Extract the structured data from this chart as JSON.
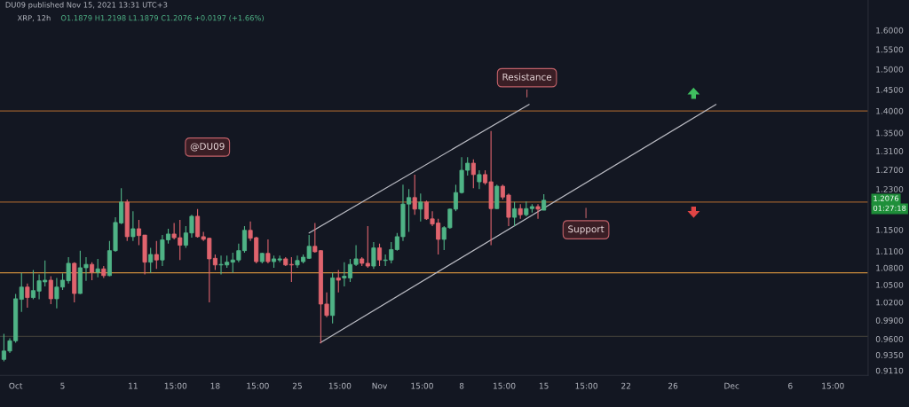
{
  "chart_data": {
    "type": "candlestick",
    "title": "XRP, 12h",
    "subtitle": "O1.1879 H1.2198 L1.1879 C1.2076 +0.0197 (+1.66%)",
    "annotations": [
      "DU09 published Nov 15, 2021 13:31 UTC+3",
      "@DU09",
      "Resistance",
      "Support",
      "1.2076",
      "01:27:18"
    ],
    "x": [
      "2021-09-30",
      "2021-09-30T12:00",
      "2021-10-01",
      "2021-10-01T12:00",
      "2021-10-02",
      "2021-10-02T12:00",
      "2021-10-03",
      "2021-10-03T12:00",
      "2021-10-04",
      "2021-10-04T12:00",
      "2021-10-05",
      "2021-10-05T12:00",
      "2021-10-06",
      "2021-10-06T12:00",
      "2021-10-07",
      "2021-10-07T12:00",
      "2021-10-08",
      "2021-10-08T12:00",
      "2021-10-09",
      "2021-10-09T12:00",
      "2021-10-10",
      "2021-10-10T12:00",
      "2021-10-11",
      "2021-10-11T12:00",
      "2021-10-12",
      "2021-10-12T12:00",
      "2021-10-13",
      "2021-10-13T12:00",
      "2021-10-14",
      "2021-10-14T12:00",
      "2021-10-15",
      "2021-10-15T12:00",
      "2021-10-16",
      "2021-10-16T12:00",
      "2021-10-17",
      "2021-10-17T12:00",
      "2021-10-18",
      "2021-10-18T12:00",
      "2021-10-19",
      "2021-10-19T12:00",
      "2021-10-20",
      "2021-10-20T12:00",
      "2021-10-21",
      "2021-10-21T12:00",
      "2021-10-22",
      "2021-10-22T12:00",
      "2021-10-23",
      "2021-10-23T12:00",
      "2021-10-24",
      "2021-10-24T12:00",
      "2021-10-25",
      "2021-10-25T12:00",
      "2021-10-26",
      "2021-10-26T12:00",
      "2021-10-27",
      "2021-10-27T12:00",
      "2021-10-28",
      "2021-10-28T12:00",
      "2021-10-29",
      "2021-10-29T12:00",
      "2021-10-30",
      "2021-10-30T12:00",
      "2021-10-31",
      "2021-10-31T12:00",
      "2021-11-01",
      "2021-11-01T12:00",
      "2021-11-02",
      "2021-11-02T12:00",
      "2021-11-03",
      "2021-11-03T12:00",
      "2021-11-04",
      "2021-11-04T12:00",
      "2021-11-05",
      "2021-11-05T12:00",
      "2021-11-06",
      "2021-11-06T12:00",
      "2021-11-07",
      "2021-11-07T12:00",
      "2021-11-08",
      "2021-11-08T12:00",
      "2021-11-09",
      "2021-11-09T12:00",
      "2021-11-10",
      "2021-11-10T12:00",
      "2021-11-11",
      "2021-11-11T12:00",
      "2021-11-12",
      "2021-11-12T12:00",
      "2021-11-13",
      "2021-11-13T12:00",
      "2021-11-14",
      "2021-11-14T12:00",
      "2021-11-15"
    ],
    "ohlc": [
      [
        0.928,
        0.968,
        0.925,
        0.941
      ],
      [
        0.941,
        0.961,
        0.938,
        0.957
      ],
      [
        0.957,
        1.034,
        0.954,
        1.026
      ],
      [
        1.025,
        1.071,
        1.004,
        1.046
      ],
      [
        1.046,
        1.052,
        1.011,
        1.028
      ],
      [
        1.028,
        1.076,
        1.025,
        1.04
      ],
      [
        1.039,
        1.068,
        1.025,
        1.057
      ],
      [
        1.055,
        1.093,
        1.047,
        1.058
      ],
      [
        1.058,
        1.065,
        1.017,
        1.026
      ],
      [
        1.026,
        1.062,
        1.01,
        1.046
      ],
      [
        1.046,
        1.07,
        1.041,
        1.058
      ],
      [
        1.057,
        1.099,
        1.052,
        1.088
      ],
      [
        1.088,
        1.09,
        1.02,
        1.035
      ],
      [
        1.035,
        1.111,
        1.034,
        1.08
      ],
      [
        1.08,
        1.099,
        1.057,
        1.086
      ],
      [
        1.086,
        1.09,
        1.058,
        1.072
      ],
      [
        1.072,
        1.096,
        1.063,
        1.078
      ],
      [
        1.078,
        1.083,
        1.062,
        1.066
      ],
      [
        1.066,
        1.129,
        1.065,
        1.111
      ],
      [
        1.111,
        1.174,
        1.109,
        1.164
      ],
      [
        1.163,
        1.232,
        1.161,
        1.204
      ],
      [
        1.204,
        1.209,
        1.129,
        1.137
      ],
      [
        1.137,
        1.186,
        1.129,
        1.152
      ],
      [
        1.152,
        1.169,
        1.121,
        1.139
      ],
      [
        1.14,
        1.14,
        1.068,
        1.09
      ],
      [
        1.09,
        1.116,
        1.071,
        1.104
      ],
      [
        1.104,
        1.129,
        1.078,
        1.094
      ],
      [
        1.094,
        1.14,
        1.083,
        1.131
      ],
      [
        1.131,
        1.152,
        1.124,
        1.142
      ],
      [
        1.142,
        1.163,
        1.132,
        1.135
      ],
      [
        1.135,
        1.169,
        1.094,
        1.121
      ],
      [
        1.121,
        1.157,
        1.116,
        1.144
      ],
      [
        1.144,
        1.179,
        1.135,
        1.176
      ],
      [
        1.176,
        1.19,
        1.135,
        1.137
      ],
      [
        1.137,
        1.146,
        1.129,
        1.132
      ],
      [
        1.134,
        1.135,
        1.02,
        1.096
      ],
      [
        1.097,
        1.104,
        1.076,
        1.085
      ],
      [
        1.085,
        1.102,
        1.068,
        1.086
      ],
      [
        1.085,
        1.102,
        1.08,
        1.09
      ],
      [
        1.09,
        1.107,
        1.071,
        1.094
      ],
      [
        1.094,
        1.124,
        1.09,
        1.111
      ],
      [
        1.111,
        1.157,
        1.107,
        1.149
      ],
      [
        1.149,
        1.166,
        1.129,
        1.134
      ],
      [
        1.135,
        1.137,
        1.088,
        1.091
      ],
      [
        1.091,
        1.107,
        1.088,
        1.106
      ],
      [
        1.106,
        1.132,
        1.088,
        1.091
      ],
      [
        1.091,
        1.102,
        1.08,
        1.096
      ],
      [
        1.094,
        1.102,
        1.09,
        1.096
      ],
      [
        1.096,
        1.099,
        1.083,
        1.085
      ],
      [
        1.086,
        1.099,
        1.055,
        1.085
      ],
      [
        1.085,
        1.102,
        1.08,
        1.093
      ],
      [
        1.091,
        1.104,
        1.088,
        1.099
      ],
      [
        1.097,
        1.14,
        1.096,
        1.119
      ],
      [
        1.119,
        1.163,
        1.107,
        1.109
      ],
      [
        1.111,
        1.112,
        0.953,
        1.017
      ],
      [
        1.017,
        1.037,
        0.995,
        0.998
      ],
      [
        0.998,
        1.071,
        0.985,
        1.062
      ],
      [
        1.062,
        1.076,
        1.037,
        1.058
      ],
      [
        1.062,
        1.09,
        1.047,
        1.065
      ],
      [
        1.062,
        1.096,
        1.055,
        1.086
      ],
      [
        1.086,
        1.121,
        1.083,
        1.096
      ],
      [
        1.096,
        1.099,
        1.083,
        1.088
      ],
      [
        1.088,
        1.157,
        1.08,
        1.083
      ],
      [
        1.083,
        1.127,
        1.078,
        1.116
      ],
      [
        1.116,
        1.124,
        1.083,
        1.094
      ],
      [
        1.093,
        1.104,
        1.083,
        1.094
      ],
      [
        1.094,
        1.127,
        1.088,
        1.113
      ],
      [
        1.113,
        1.144,
        1.111,
        1.137
      ],
      [
        1.137,
        1.239,
        1.129,
        1.2
      ],
      [
        1.2,
        1.23,
        1.146,
        1.213
      ],
      [
        1.213,
        1.26,
        1.179,
        1.19
      ],
      [
        1.19,
        1.221,
        1.166,
        1.204
      ],
      [
        1.204,
        1.207,
        1.169,
        1.171
      ],
      [
        1.171,
        1.186,
        1.157,
        1.161
      ],
      [
        1.163,
        1.171,
        1.104,
        1.132
      ],
      [
        1.132,
        1.157,
        1.112,
        1.154
      ],
      [
        1.154,
        1.191,
        1.152,
        1.19
      ],
      [
        1.19,
        1.239,
        1.186,
        1.223
      ],
      [
        1.223,
        1.297,
        1.221,
        1.269
      ],
      [
        1.269,
        1.297,
        1.258,
        1.284
      ],
      [
        1.284,
        1.292,
        1.232,
        1.26
      ],
      [
        1.245,
        1.269,
        1.23,
        1.26
      ],
      [
        1.26,
        1.269,
        1.239,
        1.243
      ],
      [
        1.245,
        1.354,
        1.121,
        1.191
      ],
      [
        1.191,
        1.239,
        1.19,
        1.236
      ],
      [
        1.236,
        1.239,
        1.209,
        1.214
      ],
      [
        1.218,
        1.221,
        1.157,
        1.174
      ],
      [
        1.174,
        1.204,
        1.157,
        1.191
      ],
      [
        1.191,
        1.2,
        1.171,
        1.179
      ],
      [
        1.179,
        1.205,
        1.176,
        1.191
      ],
      [
        1.191,
        1.2,
        1.183,
        1.195
      ],
      [
        1.195,
        1.2,
        1.171,
        1.19
      ],
      [
        1.1879,
        1.2198,
        1.1879,
        1.2076
      ]
    ],
    "colors": [
      "#4fb386",
      "#4fb386",
      "#4fb386",
      "#4fb386",
      "#e0646e",
      "#4fb386",
      "#4fb386",
      "#4fb386",
      "#e0646e",
      "#4fb386",
      "#4fb386",
      "#4fb386",
      "#e0646e",
      "#4fb386",
      "#4fb386",
      "#e0646e",
      "#4fb386",
      "#e0646e",
      "#4fb386",
      "#4fb386",
      "#4fb386",
      "#e0646e",
      "#4fb386",
      "#e0646e",
      "#e0646e",
      "#4fb386",
      "#e0646e",
      "#4fb386",
      "#4fb386",
      "#e0646e",
      "#e0646e",
      "#4fb386",
      "#4fb386",
      "#e0646e",
      "#e0646e",
      "#e0646e",
      "#e0646e",
      "#4fb386",
      "#4fb386",
      "#4fb386",
      "#4fb386",
      "#4fb386",
      "#e0646e",
      "#e0646e",
      "#4fb386",
      "#e0646e",
      "#4fb386",
      "#4fb386",
      "#e0646e",
      "#e0646e",
      "#4fb386",
      "#4fb386",
      "#4fb386",
      "#e0646e",
      "#e0646e",
      "#e0646e",
      "#4fb386",
      "#e0646e",
      "#4fb386",
      "#4fb386",
      "#4fb386",
      "#e0646e",
      "#e0646e",
      "#4fb386",
      "#e0646e",
      "#4fb386",
      "#4fb386",
      "#4fb386",
      "#4fb386",
      "#4fb386",
      "#e0646e",
      "#4fb386",
      "#e0646e",
      "#e0646e",
      "#e0646e",
      "#4fb386",
      "#4fb386",
      "#4fb386",
      "#4fb386",
      "#4fb386",
      "#e0646e",
      "#4fb386",
      "#e0646e",
      "#e0646e",
      "#4fb386",
      "#e0646e",
      "#e0646e",
      "#4fb386",
      "#e0646e",
      "#4fb386",
      "#4fb386",
      "#e0646e",
      "#4fb386"
    ],
    "series": [
      {
        "type": "line",
        "color": "#b9bac2",
        "x": [
          "2021-10-26",
          "2021-11-13T18:00"
        ],
        "values": [
          1.144,
          1.415
        ]
      },
      {
        "type": "line",
        "color": "#b9bac2",
        "x": [
          "2021-10-26T23:00",
          "2021-11-29T16:00"
        ],
        "values": [
          0.954,
          1.415
        ]
      }
    ],
    "ref_lines": [
      {
        "axis": "y",
        "value": 1.4,
        "color": "#9a5f2e"
      },
      {
        "axis": "y",
        "value": 1.204,
        "color": "#9a5f2e"
      },
      {
        "axis": "y",
        "value": 1.071,
        "color": "#c98a3c"
      },
      {
        "axis": "y",
        "value": 0.964,
        "color": "#3b3a36"
      }
    ],
    "log": true,
    "xlim": [
      "2021-09-29T16:00",
      "2021-12-12T15:00"
    ],
    "xticks": [
      {
        "value": "2021-10-01",
        "label": "Oct"
      },
      {
        "value": "2021-10-05",
        "label": "5"
      },
      {
        "value": "2021-10-11",
        "label": "11"
      },
      {
        "value": "2021-10-14T15:00",
        "label": "15:00"
      },
      {
        "value": "2021-10-18",
        "label": "18"
      },
      {
        "value": "2021-10-21T15:00",
        "label": "15:00"
      },
      {
        "value": "2021-10-25",
        "label": "25"
      },
      {
        "value": "2021-10-28T15:00",
        "label": "15:00"
      },
      {
        "value": "2021-11-01",
        "label": "Nov"
      },
      {
        "value": "2021-11-04T15:00",
        "label": "15:00"
      },
      {
        "value": "2021-11-08",
        "label": "8"
      },
      {
        "value": "2021-11-11T15:00",
        "label": "15:00"
      },
      {
        "value": "2021-11-15",
        "label": "15"
      },
      {
        "value": "2021-11-18T15:00",
        "label": "15:00"
      },
      {
        "value": "2021-11-22",
        "label": "22"
      },
      {
        "value": "2021-11-26",
        "label": "26"
      },
      {
        "value": "2021-12-01",
        "label": "Dec"
      },
      {
        "value": "2021-12-06",
        "label": "6"
      },
      {
        "value": "2021-12-09T15:00",
        "label": "15:00"
      }
    ],
    "ylim": [
      0.904,
      1.682
    ],
    "yticks": [
      {
        "value": 0.911,
        "label": "0.9110"
      },
      {
        "value": 0.935,
        "label": "0.9350"
      },
      {
        "value": 0.96,
        "label": "0.9600"
      },
      {
        "value": 0.99,
        "label": "0.9900"
      },
      {
        "value": 1.02,
        "label": "1.0200"
      },
      {
        "value": 1.05,
        "label": "1.0500"
      },
      {
        "value": 1.08,
        "label": "1.0800"
      },
      {
        "value": 1.11,
        "label": "1.1100"
      },
      {
        "value": 1.15,
        "label": "1.1500"
      },
      {
        "value": 1.23,
        "label": "1.2300"
      },
      {
        "value": 1.27,
        "label": "1.2700"
      },
      {
        "value": 1.31,
        "label": "1.3100"
      },
      {
        "value": 1.35,
        "label": "1.3500"
      },
      {
        "value": 1.4,
        "label": "1.4000"
      },
      {
        "value": 1.45,
        "label": "1.4500"
      },
      {
        "value": 1.5,
        "label": "1.5000"
      },
      {
        "value": 1.55,
        "label": "1.5500"
      },
      {
        "value": 1.6,
        "label": "1.6000"
      }
    ]
  }
}
